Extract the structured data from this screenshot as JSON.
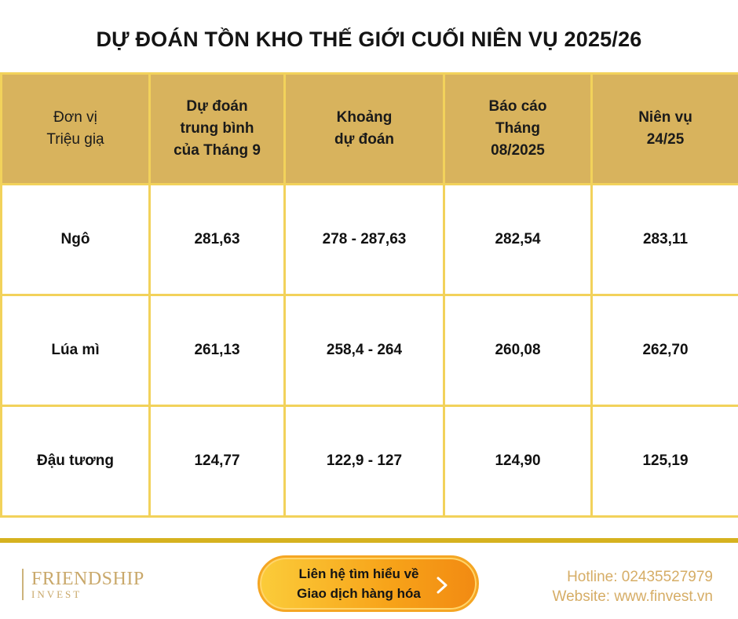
{
  "title": "DỰ ĐOÁN TỒN KHO THẾ GIỚI CUỐI NIÊN VỤ 2025/26",
  "table": {
    "headers": [
      {
        "line1": "Đơn vị",
        "line2": "Triệu giạ",
        "line3": ""
      },
      {
        "line1": "Dự đoán",
        "line2": "trung bình",
        "line3": "của Tháng 9"
      },
      {
        "line1": "Khoảng",
        "line2": "dự đoán",
        "line3": ""
      },
      {
        "line1": "Báo cáo",
        "line2": "Tháng",
        "line3": "08/2025"
      },
      {
        "line1": "Niên vụ",
        "line2": "24/25",
        "line3": ""
      }
    ],
    "rows": [
      {
        "commodity": "Ngô",
        "forecast": "281,63",
        "trend": "up",
        "range": "278 - 287,63",
        "august": "282,54",
        "prev_season": "283,11"
      },
      {
        "commodity": "Lúa mì",
        "forecast": "261,13",
        "trend": "down",
        "range": "258,4 - 264",
        "august": "260,08",
        "prev_season": "262,70"
      },
      {
        "commodity": "Đậu tương",
        "forecast": "124,77",
        "trend": "up",
        "range": "122,9 - 127",
        "august": "124,90",
        "prev_season": "125,19"
      }
    ]
  },
  "footer": {
    "brand": "FRIENDSHIP",
    "brand_sub": "INVEST",
    "cta_line1": "Liên hệ tìm hiểu về",
    "cta_line2": "Giao dịch hàng hóa",
    "hotline": "Hotline: 02435527979",
    "website": "Website: www.finvest.vn"
  },
  "colors": {
    "header_bg": "#d8b35d",
    "grid": "#f2d25b",
    "positive": "#1fae5b",
    "negative": "#e8363f",
    "accent_bar": "#d6b21f"
  },
  "icons": {
    "cta_arrow": "chevron-right-icon"
  }
}
